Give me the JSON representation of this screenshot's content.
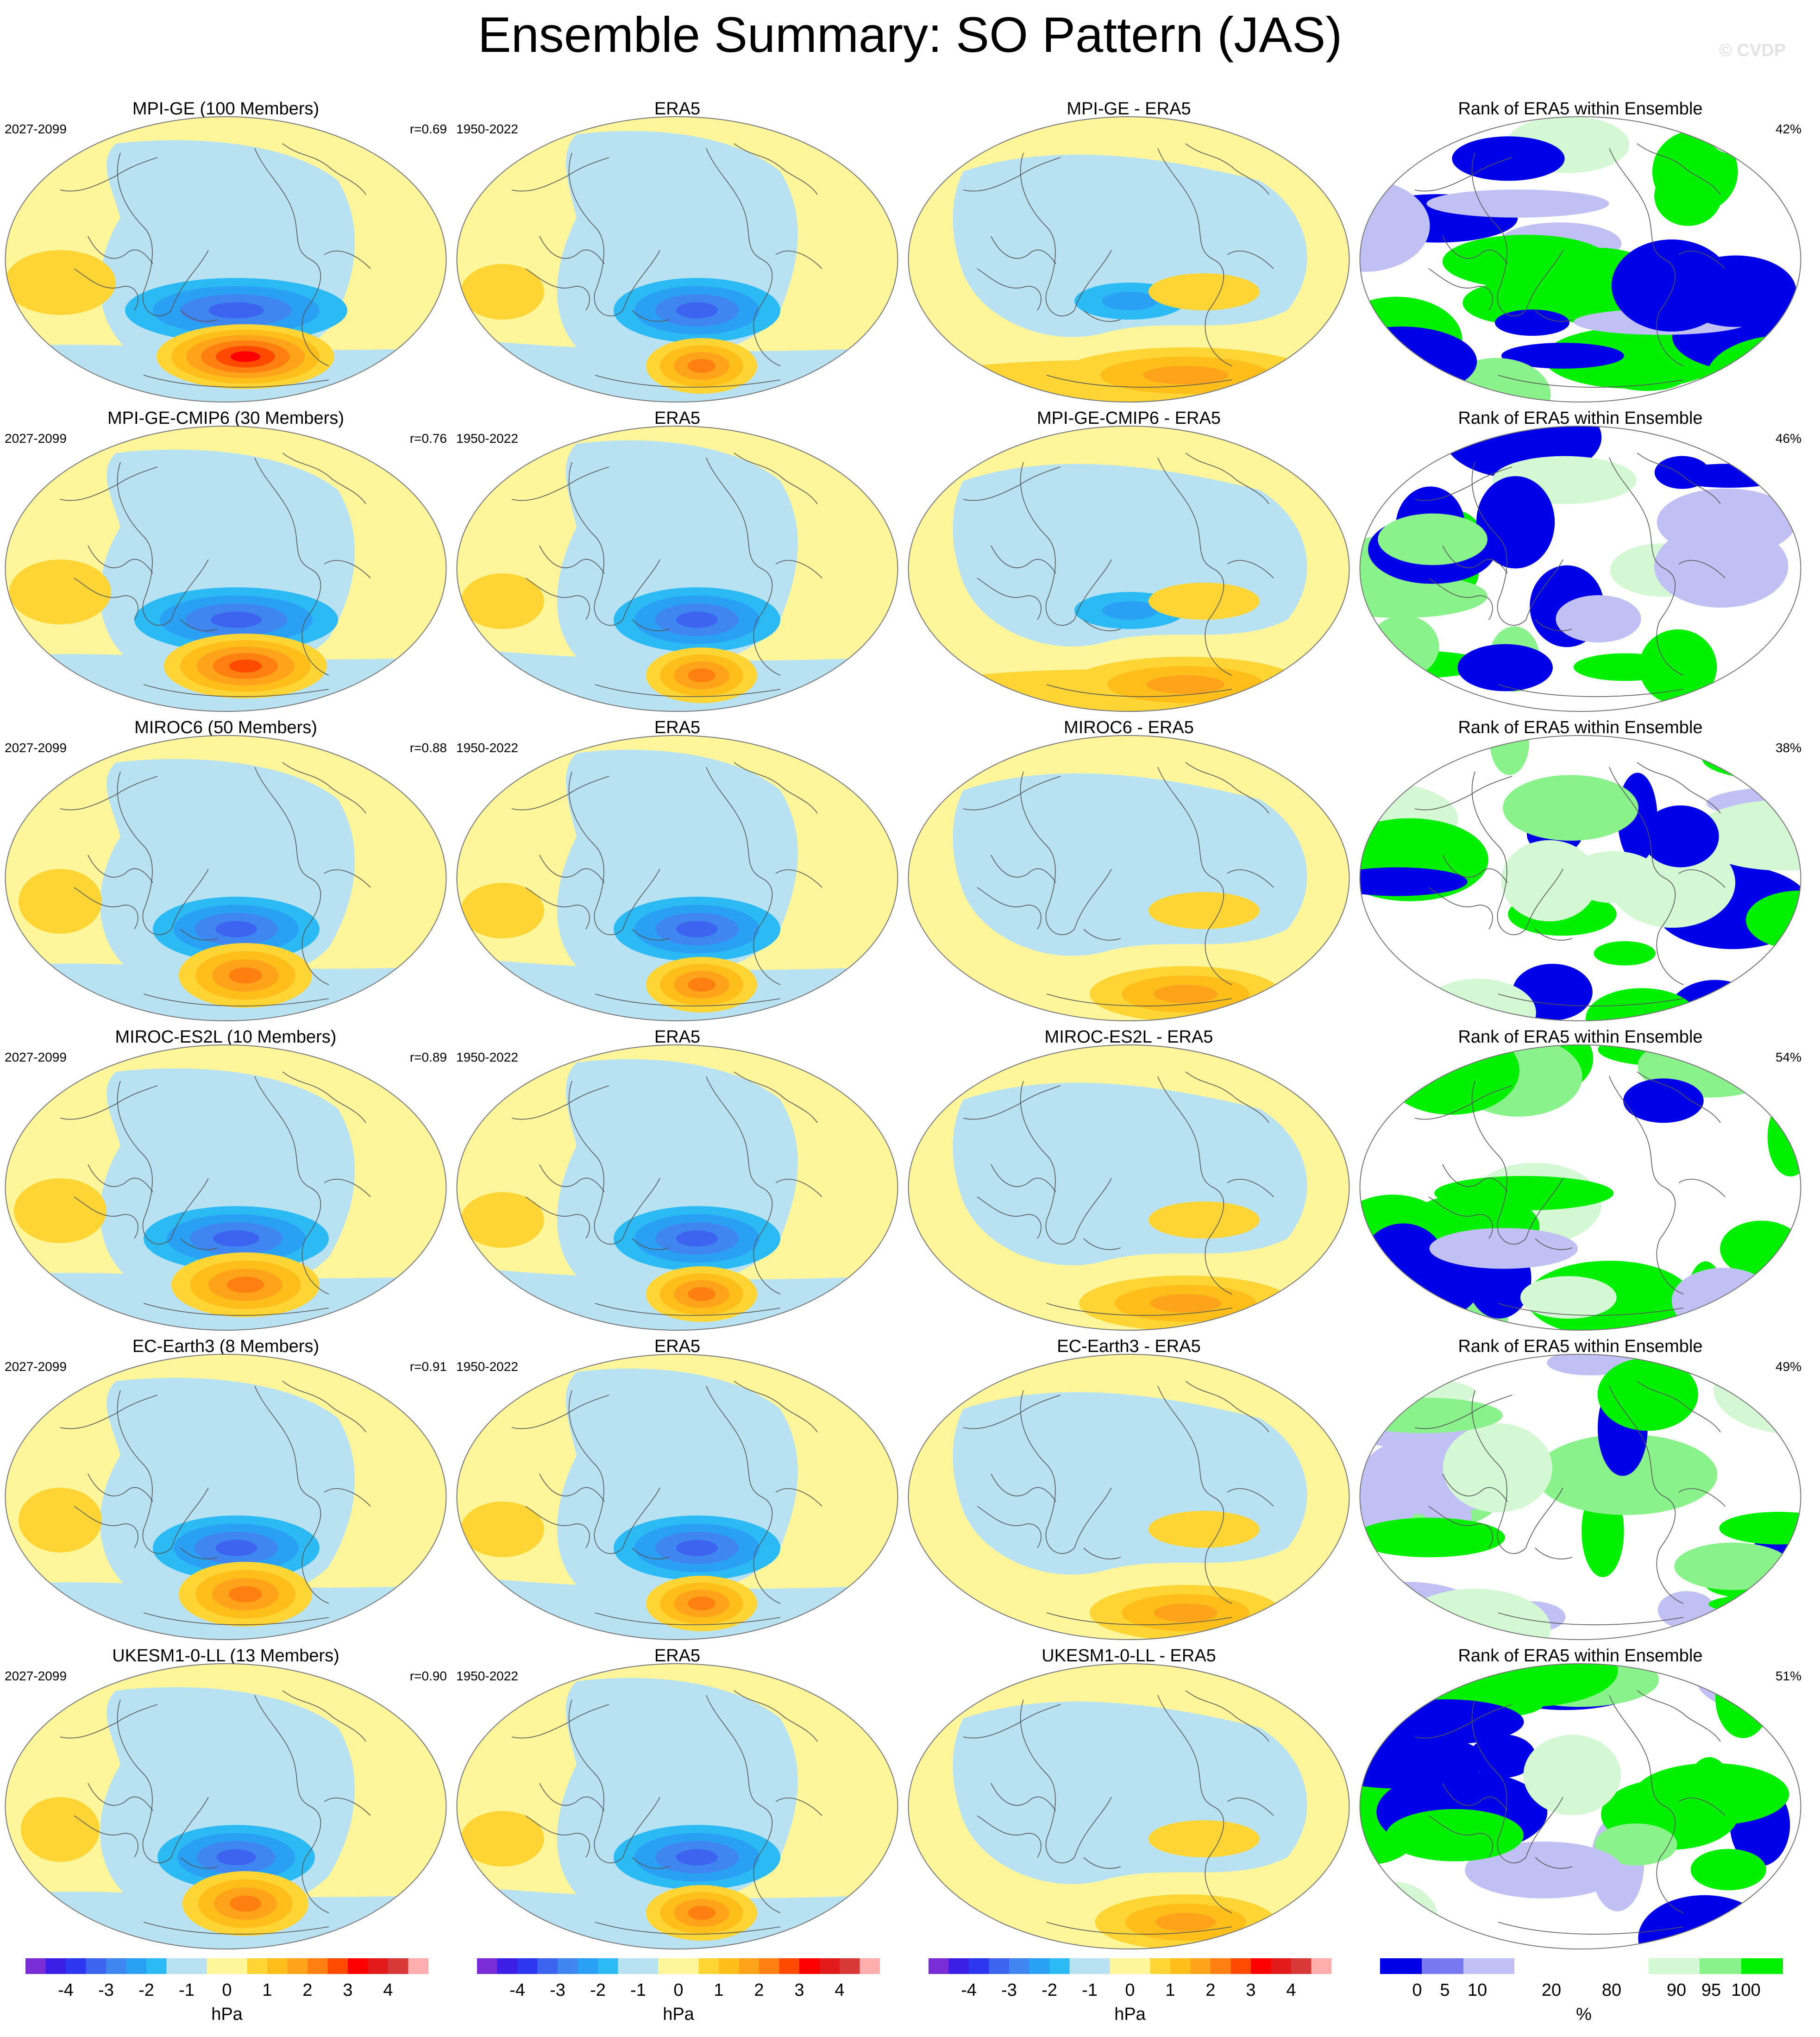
{
  "title": "Ensemble Summary: SO Pattern (JAS)",
  "watermark": "© CVDP",
  "colors": {
    "neg4": "#7a2cd6",
    "neg35": "#3c1ee6",
    "neg3": "#2d37f0",
    "neg25": "#3d64f0",
    "neg2": "#3f86f0",
    "neg15": "#2aa0f5",
    "neg1": "#2cbaf5",
    "neg05": "#b8e2f2",
    "pos05": "#fff59a",
    "pos1": "#ffd535",
    "pos15": "#ffbe1a",
    "pos2": "#ffa31a",
    "pos25": "#ff7f10",
    "pos3": "#ff4a00",
    "pos35": "#ff0000",
    "pos4": "#e21a1a",
    "pos45": "#d83838",
    "pos5": "#ffadad",
    "rank_blue": "#0000e8",
    "rank_mid_blue": "#7878f0",
    "rank_light_blue": "#c0c0f5",
    "rank_white": "#ffffff",
    "rank_light_green": "#d4f7d4",
    "rank_mid_green": "#8af28a",
    "rank_green": "#00f000",
    "coast": "#555555"
  },
  "rows": [
    {
      "model": "MPI-GE (100 Members)",
      "diff": "MPI-GE - ERA5",
      "years": "2027-2099",
      "r": "r=0.69",
      "rank_pct": "42%",
      "strength": 1.2,
      "ens": "hot"
    },
    {
      "model": "MPI-GE-CMIP6 (30 Members)",
      "diff": "MPI-GE-CMIP6 - ERA5",
      "years": "2027-2099",
      "r": "r=0.76",
      "rank_pct": "46%",
      "strength": 1.1,
      "ens": "warm"
    },
    {
      "model": "MIROC6 (50 Members)",
      "diff": "MIROC6 - ERA5",
      "years": "2027-2099",
      "r": "r=0.88",
      "rank_pct": "38%",
      "strength": 0.9,
      "ens": "mid"
    },
    {
      "model": "MIROC-ES2L (10 Members)",
      "diff": "MIROC-ES2L - ERA5",
      "years": "2027-2099",
      "r": "r=0.89",
      "rank_pct": "54%",
      "strength": 1.0,
      "ens": "mid"
    },
    {
      "model": "EC-Earth3 (8 Members)",
      "diff": "EC-Earth3 - ERA5",
      "years": "2027-2099",
      "r": "r=0.91",
      "rank_pct": "49%",
      "strength": 0.9,
      "ens": "mid"
    },
    {
      "model": "UKESM1-0-LL (13 Members)",
      "diff": "UKESM1-0-LL - ERA5",
      "years": "2027-2099",
      "r": "r=0.90",
      "rank_pct": "51%",
      "strength": 0.85,
      "ens": "mid"
    }
  ],
  "era5": {
    "title": "ERA5",
    "years": "1950-2022"
  },
  "rank_title": "Rank of ERA5 within Ensemble",
  "colorbar_hpa": {
    "ticks": [
      "-4",
      "-3",
      "-2",
      "-1",
      "0",
      "1",
      "2",
      "3",
      "4"
    ],
    "unit": "hPa"
  },
  "colorbar_rank": {
    "ticks": [
      "0",
      "5",
      "10",
      "20",
      "80",
      "90",
      "95",
      "100"
    ],
    "unit": "%"
  }
}
